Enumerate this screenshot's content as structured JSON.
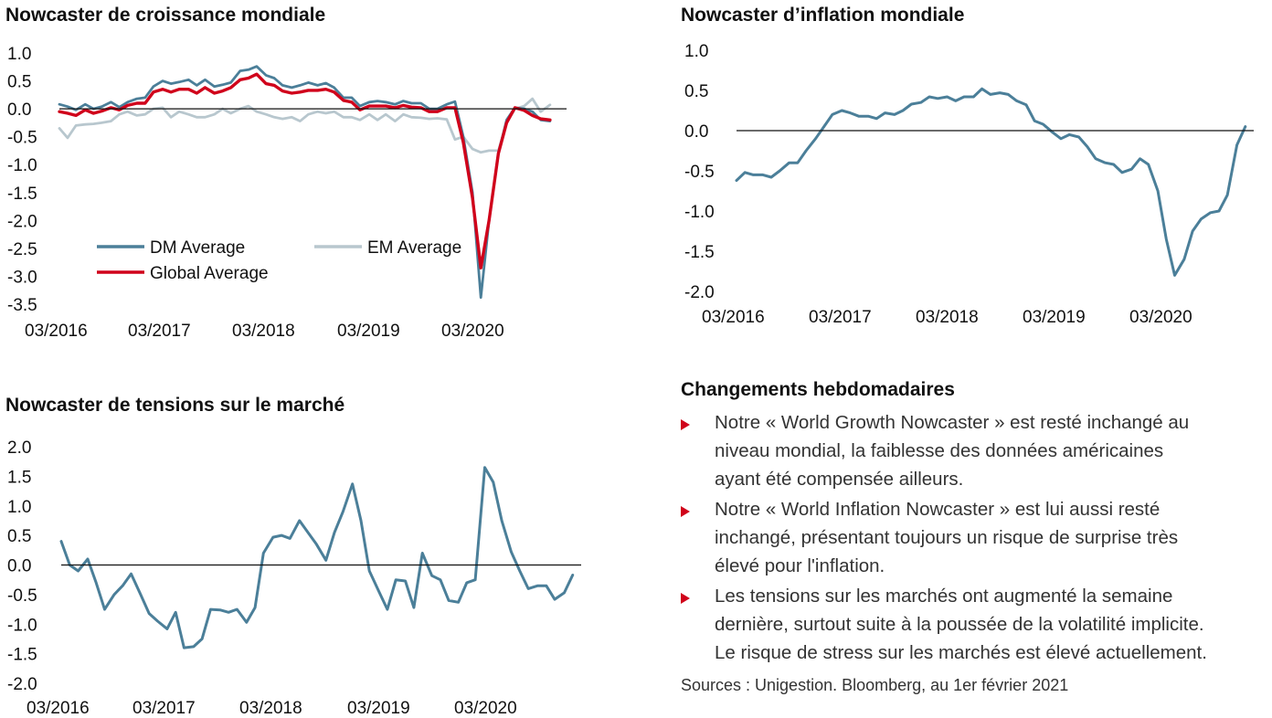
{
  "colors": {
    "dm": "#4b7f99",
    "em": "#b8c7ce",
    "global": "#d0021b",
    "bullet": "#d0021b"
  },
  "chart_data": [
    {
      "type": "line",
      "title": "Nowcaster de croissance mondiale",
      "xlabel": "",
      "ylabel": "",
      "x_tick_labels": [
        "03/2016",
        "03/2017",
        "03/2018",
        "03/2019",
        "03/2020"
      ],
      "y_ticks": [
        "1.0",
        "0.5",
        "0.0",
        "-0.5",
        "-1.0",
        "-1.5",
        "-2.0",
        "-2.5",
        "-3.0",
        "-3.5"
      ],
      "ylim": [
        -3.5,
        1.0
      ],
      "xlim": [
        2016.17,
        2021.08
      ],
      "zero_line": true,
      "legend": [
        "DM Average",
        "EM Average",
        "Global Average"
      ],
      "series": [
        {
          "name": "DM Average",
          "color": "#4b7f99",
          "x": [
            2016.17,
            2016.25,
            2016.33,
            2016.42,
            2016.5,
            2016.58,
            2016.67,
            2016.75,
            2016.83,
            2016.92,
            2017.0,
            2017.08,
            2017.17,
            2017.25,
            2017.33,
            2017.42,
            2017.5,
            2017.58,
            2017.67,
            2017.75,
            2017.83,
            2017.92,
            2018.0,
            2018.08,
            2018.17,
            2018.25,
            2018.33,
            2018.42,
            2018.5,
            2018.58,
            2018.67,
            2018.75,
            2018.83,
            2018.92,
            2019.0,
            2019.08,
            2019.17,
            2019.25,
            2019.33,
            2019.42,
            2019.5,
            2019.58,
            2019.67,
            2019.75,
            2019.83,
            2019.92,
            2020.0,
            2020.08,
            2020.17,
            2020.25,
            2020.33,
            2020.42,
            2020.5,
            2020.58,
            2020.67,
            2020.75,
            2020.83,
            2020.92
          ],
          "y": [
            0.08,
            0.04,
            -0.02,
            0.08,
            0.0,
            0.04,
            0.12,
            0.03,
            0.12,
            0.18,
            0.2,
            0.4,
            0.5,
            0.45,
            0.48,
            0.52,
            0.42,
            0.52,
            0.4,
            0.43,
            0.47,
            0.68,
            0.7,
            0.76,
            0.6,
            0.55,
            0.42,
            0.38,
            0.42,
            0.47,
            0.42,
            0.46,
            0.38,
            0.2,
            0.2,
            0.05,
            0.12,
            0.14,
            0.12,
            0.08,
            0.14,
            0.1,
            0.1,
            0.0,
            0.0,
            0.08,
            0.13,
            -0.5,
            -1.5,
            -3.38,
            -2.0,
            -0.8,
            -0.2,
            0.02,
            0.0,
            -0.05,
            -0.2,
            -0.22
          ]
        },
        {
          "name": "EM Average",
          "color": "#b8c7ce",
          "x": [
            2016.17,
            2016.25,
            2016.33,
            2016.42,
            2016.5,
            2016.58,
            2016.67,
            2016.75,
            2016.83,
            2016.92,
            2017.0,
            2017.08,
            2017.17,
            2017.25,
            2017.33,
            2017.42,
            2017.5,
            2017.58,
            2017.67,
            2017.75,
            2017.83,
            2017.92,
            2018.0,
            2018.08,
            2018.17,
            2018.25,
            2018.33,
            2018.42,
            2018.5,
            2018.58,
            2018.67,
            2018.75,
            2018.83,
            2018.92,
            2019.0,
            2019.08,
            2019.17,
            2019.25,
            2019.33,
            2019.42,
            2019.5,
            2019.58,
            2019.67,
            2019.75,
            2019.83,
            2019.92,
            2020.0,
            2020.08,
            2020.17,
            2020.25,
            2020.33,
            2020.42,
            2020.5,
            2020.58,
            2020.67,
            2020.75,
            2020.83,
            2020.92
          ],
          "y": [
            -0.35,
            -0.52,
            -0.3,
            -0.28,
            -0.27,
            -0.25,
            -0.22,
            -0.1,
            -0.05,
            -0.12,
            -0.1,
            0.0,
            0.02,
            -0.15,
            -0.05,
            -0.1,
            -0.15,
            -0.15,
            -0.1,
            0.0,
            -0.08,
            0.0,
            0.05,
            -0.05,
            -0.1,
            -0.15,
            -0.18,
            -0.15,
            -0.22,
            -0.1,
            -0.05,
            -0.08,
            -0.05,
            -0.15,
            -0.15,
            -0.2,
            -0.1,
            -0.2,
            -0.1,
            -0.22,
            -0.1,
            -0.15,
            -0.16,
            -0.18,
            -0.17,
            -0.19,
            -0.55,
            -0.5,
            -0.72,
            -0.78,
            -0.75,
            -0.75,
            -0.25,
            0.0,
            0.05,
            0.18,
            -0.05,
            0.07
          ]
        },
        {
          "name": "Global Average",
          "color": "#d0021b",
          "x": [
            2016.17,
            2016.25,
            2016.33,
            2016.42,
            2016.5,
            2016.58,
            2016.67,
            2016.75,
            2016.83,
            2016.92,
            2017.0,
            2017.08,
            2017.17,
            2017.25,
            2017.33,
            2017.42,
            2017.5,
            2017.58,
            2017.67,
            2017.75,
            2017.83,
            2017.92,
            2018.0,
            2018.08,
            2018.17,
            2018.25,
            2018.33,
            2018.42,
            2018.5,
            2018.58,
            2018.67,
            2018.75,
            2018.83,
            2018.92,
            2019.0,
            2019.08,
            2019.17,
            2019.25,
            2019.33,
            2019.42,
            2019.5,
            2019.58,
            2019.67,
            2019.75,
            2019.83,
            2019.92,
            2020.0,
            2020.08,
            2020.17,
            2020.25,
            2020.33,
            2020.42,
            2020.5,
            2020.58,
            2020.67,
            2020.75,
            2020.83,
            2020.92
          ],
          "y": [
            -0.05,
            -0.08,
            -0.12,
            -0.02,
            -0.08,
            -0.04,
            0.02,
            -0.02,
            0.06,
            0.1,
            0.1,
            0.3,
            0.35,
            0.3,
            0.35,
            0.35,
            0.28,
            0.38,
            0.28,
            0.32,
            0.38,
            0.52,
            0.55,
            0.62,
            0.45,
            0.42,
            0.32,
            0.28,
            0.3,
            0.33,
            0.33,
            0.35,
            0.3,
            0.15,
            0.12,
            -0.02,
            0.05,
            0.05,
            0.05,
            0.02,
            0.06,
            0.03,
            0.02,
            -0.05,
            -0.05,
            0.02,
            0.02,
            -0.6,
            -1.6,
            -2.85,
            -2.0,
            -0.8,
            -0.25,
            0.02,
            -0.03,
            -0.12,
            -0.18,
            -0.2
          ]
        }
      ]
    },
    {
      "type": "line",
      "title": "Nowcaster d’inflation mondiale",
      "xlabel": "",
      "ylabel": "",
      "x_tick_labels": [
        "03/2016",
        "03/2017",
        "03/2018",
        "03/2019",
        "03/2020"
      ],
      "y_ticks": [
        "1.0",
        "0.5",
        "0.0",
        "-0.5",
        "-1.0",
        "-1.5",
        "-2.0"
      ],
      "ylim": [
        -2.0,
        1.0
      ],
      "xlim": [
        2016.17,
        2021.08
      ],
      "zero_line": true,
      "series": [
        {
          "color": "#4b7f99",
          "x": [
            2016.17,
            2016.25,
            2016.33,
            2016.42,
            2016.5,
            2016.58,
            2016.67,
            2016.75,
            2016.83,
            2016.92,
            2017.0,
            2017.08,
            2017.17,
            2017.25,
            2017.33,
            2017.42,
            2017.5,
            2017.58,
            2017.67,
            2017.75,
            2017.83,
            2017.92,
            2018.0,
            2018.08,
            2018.17,
            2018.25,
            2018.33,
            2018.42,
            2018.5,
            2018.58,
            2018.67,
            2018.75,
            2018.83,
            2018.92,
            2019.0,
            2019.08,
            2019.17,
            2019.25,
            2019.33,
            2019.42,
            2019.5,
            2019.58,
            2019.67,
            2019.75,
            2019.83,
            2019.92,
            2020.0,
            2020.08,
            2020.17,
            2020.25,
            2020.33,
            2020.42,
            2020.5,
            2020.58,
            2020.67,
            2020.75,
            2020.83,
            2020.92,
            2021.0
          ],
          "y": [
            -0.62,
            -0.52,
            -0.55,
            -0.55,
            -0.58,
            -0.5,
            -0.4,
            -0.4,
            -0.25,
            -0.1,
            0.05,
            0.2,
            0.25,
            0.22,
            0.18,
            0.18,
            0.15,
            0.22,
            0.2,
            0.25,
            0.33,
            0.35,
            0.42,
            0.4,
            0.42,
            0.37,
            0.42,
            0.42,
            0.52,
            0.45,
            0.47,
            0.45,
            0.37,
            0.32,
            0.12,
            0.08,
            -0.02,
            -0.1,
            -0.05,
            -0.08,
            -0.2,
            -0.35,
            -0.4,
            -0.42,
            -0.52,
            -0.48,
            -0.35,
            -0.42,
            -0.75,
            -1.35,
            -1.8,
            -1.6,
            -1.25,
            -1.1,
            -1.02,
            -1.0,
            -0.8,
            -0.18,
            0.05
          ]
        }
      ]
    },
    {
      "type": "line",
      "title": "Nowcaster de tensions sur le marché",
      "xlabel": "",
      "ylabel": "",
      "x_tick_labels": [
        "03/2016",
        "03/2017",
        "03/2018",
        "03/2019",
        "03/2020"
      ],
      "y_ticks": [
        "2.0",
        "1.5",
        "1.0",
        "0.5",
        "0.0",
        "-0.5",
        "-1.0",
        "-1.5",
        "-2.0"
      ],
      "ylim": [
        -2.0,
        2.0
      ],
      "xlim": [
        2016.17,
        2021.08
      ],
      "zero_line": true,
      "series": [
        {
          "color": "#4b7f99",
          "x": [
            2016.17,
            2016.25,
            2016.33,
            2016.42,
            2016.5,
            2016.58,
            2016.67,
            2016.75,
            2016.83,
            2016.92,
            2017.0,
            2017.08,
            2017.17,
            2017.25,
            2017.33,
            2017.42,
            2017.5,
            2017.58,
            2017.67,
            2017.75,
            2017.83,
            2017.92,
            2018.0,
            2018.08,
            2018.17,
            2018.25,
            2018.33,
            2018.42,
            2018.5,
            2018.58,
            2018.67,
            2018.75,
            2018.83,
            2018.92,
            2019.0,
            2019.08,
            2019.17,
            2019.25,
            2019.33,
            2019.42,
            2019.5,
            2019.58,
            2019.67,
            2019.75,
            2019.83,
            2019.92,
            2020.0,
            2020.08,
            2020.17,
            2020.25,
            2020.33,
            2020.42,
            2020.5,
            2020.58,
            2020.67,
            2020.75,
            2020.83,
            2020.92,
            2021.0
          ],
          "y": [
            0.4,
            0.0,
            -0.1,
            0.1,
            -0.3,
            -0.75,
            -0.5,
            -0.35,
            -0.15,
            -0.5,
            -0.82,
            -0.95,
            -1.08,
            -0.8,
            -1.4,
            -1.38,
            -1.25,
            -0.75,
            -0.76,
            -0.8,
            -0.75,
            -0.97,
            -0.72,
            0.2,
            0.47,
            0.5,
            0.45,
            0.75,
            0.55,
            0.35,
            0.08,
            0.55,
            0.9,
            1.37,
            0.75,
            -0.1,
            -0.45,
            -0.75,
            -0.25,
            -0.27,
            -0.72,
            0.2,
            -0.18,
            -0.25,
            -0.6,
            -0.63,
            -0.3,
            -0.25,
            1.65,
            1.4,
            0.75,
            0.22,
            -0.1,
            -0.4,
            -0.35,
            -0.35,
            -0.58,
            -0.47,
            -0.17
          ]
        }
      ]
    }
  ],
  "weekly_changes": {
    "title": "Changements hebdomadaires",
    "bullets": [
      {
        "lines": [
          "Notre « World Growth Nowcaster » est resté inchangé au",
          "niveau mondial, la faiblesse des données américaines",
          "ayant été compensée ailleurs."
        ]
      },
      {
        "lines": [
          "Notre « World Inflation Nowcaster » est lui aussi resté",
          "inchangé, présentant toujours un risque de surprise très",
          "élevé pour l'inflation."
        ]
      },
      {
        "lines": [
          "Les tensions sur les marchés ont augmenté la semaine",
          "dernière, surtout suite à la poussée de la volatilité implicite.",
          "Le risque de stress sur les marchés est élevé actuellement."
        ]
      }
    ],
    "source": "Sources : Unigestion. Bloomberg, au 1er février 2021"
  }
}
